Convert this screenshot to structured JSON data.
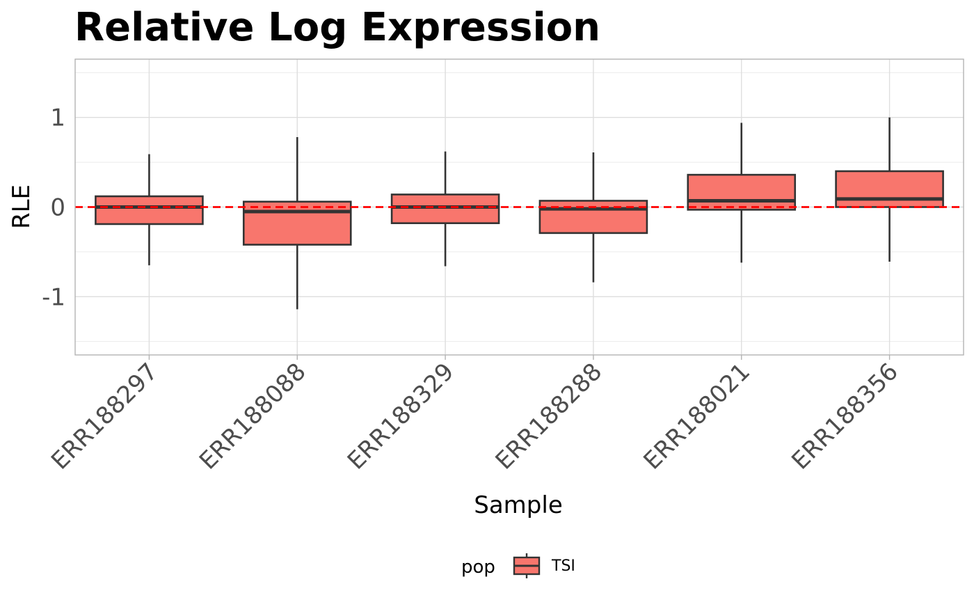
{
  "chart_data": {
    "type": "boxplot",
    "title": "Relative Log Expression",
    "xlabel": "Sample",
    "ylabel": "RLE",
    "ylim": [
      -1.65,
      1.65
    ],
    "yticks": [
      -1,
      0,
      1
    ],
    "ytick_labels": [
      "-1",
      "0",
      "1"
    ],
    "grid": true,
    "reference_line": {
      "y": 0,
      "style": "dashed",
      "color": "#ff0000"
    },
    "categories": [
      "ERR188297",
      "ERR188088",
      "ERR188329",
      "ERR188288",
      "ERR188021",
      "ERR188356"
    ],
    "series": [
      {
        "name": "TSI",
        "color": "#f8766d",
        "boxes": [
          {
            "whisker_low": -0.65,
            "q1": -0.19,
            "median": 0.0,
            "q3": 0.12,
            "whisker_high": 0.59
          },
          {
            "whisker_low": -1.14,
            "q1": -0.42,
            "median": -0.05,
            "q3": 0.06,
            "whisker_high": 0.78
          },
          {
            "whisker_low": -0.66,
            "q1": -0.18,
            "median": 0.0,
            "q3": 0.14,
            "whisker_high": 0.62
          },
          {
            "whisker_low": -0.84,
            "q1": -0.29,
            "median": -0.02,
            "q3": 0.07,
            "whisker_high": 0.61
          },
          {
            "whisker_low": -0.62,
            "q1": -0.03,
            "median": 0.07,
            "q3": 0.36,
            "whisker_high": 0.94
          },
          {
            "whisker_low": -0.61,
            "q1": 0.0,
            "median": 0.09,
            "q3": 0.4,
            "whisker_high": 1.0
          }
        ]
      }
    ],
    "legend": {
      "title": "pop",
      "position": "bottom",
      "entries": [
        "TSI"
      ]
    }
  }
}
